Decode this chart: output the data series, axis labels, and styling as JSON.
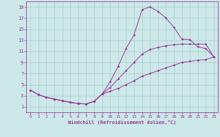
{
  "bg_color": "#cce8e8",
  "grid_color": "#aacccc",
  "line_color": "#993399",
  "xlabel": "Windchill (Refroidissement éolien,°C)",
  "xlim": [
    -0.5,
    23.5
  ],
  "ylim": [
    0,
    20
  ],
  "xticks": [
    0,
    1,
    2,
    3,
    4,
    5,
    6,
    7,
    8,
    9,
    10,
    11,
    12,
    13,
    14,
    15,
    16,
    17,
    18,
    19,
    20,
    21,
    22,
    23
  ],
  "yticks": [
    1,
    3,
    5,
    7,
    9,
    11,
    13,
    15,
    17,
    19
  ],
  "curve1_x": [
    0,
    1,
    2,
    3,
    4,
    5,
    6,
    7,
    8,
    9,
    10,
    11,
    12,
    13,
    14,
    15,
    16,
    17,
    18,
    19,
    20,
    21,
    22,
    23
  ],
  "curve1_y": [
    4.0,
    3.2,
    2.7,
    2.4,
    2.1,
    1.8,
    1.6,
    1.5,
    2.0,
    3.3,
    5.5,
    8.3,
    11.5,
    14.0,
    18.5,
    19.0,
    18.2,
    17.0,
    15.3,
    13.2,
    13.1,
    11.8,
    11.5,
    10.0
  ],
  "curve2_x": [
    0,
    1,
    2,
    3,
    4,
    5,
    6,
    7,
    8,
    9,
    10,
    11,
    12,
    13,
    14,
    15,
    16,
    17,
    18,
    19,
    20,
    21,
    22,
    23
  ],
  "curve2_y": [
    4.0,
    3.2,
    2.7,
    2.4,
    2.1,
    1.8,
    1.6,
    1.5,
    2.0,
    3.3,
    4.5,
    6.0,
    7.5,
    9.0,
    10.5,
    11.3,
    11.7,
    12.0,
    12.2,
    12.3,
    12.3,
    12.3,
    12.3,
    10.0
  ],
  "curve3_x": [
    0,
    1,
    2,
    3,
    4,
    5,
    6,
    7,
    8,
    9,
    10,
    11,
    12,
    13,
    14,
    15,
    16,
    17,
    18,
    19,
    20,
    21,
    22,
    23
  ],
  "curve3_y": [
    4.0,
    3.2,
    2.7,
    2.4,
    2.1,
    1.8,
    1.6,
    1.5,
    2.0,
    3.3,
    3.8,
    4.3,
    5.0,
    5.7,
    6.5,
    7.0,
    7.5,
    8.0,
    8.5,
    9.0,
    9.2,
    9.4,
    9.5,
    10.0
  ]
}
